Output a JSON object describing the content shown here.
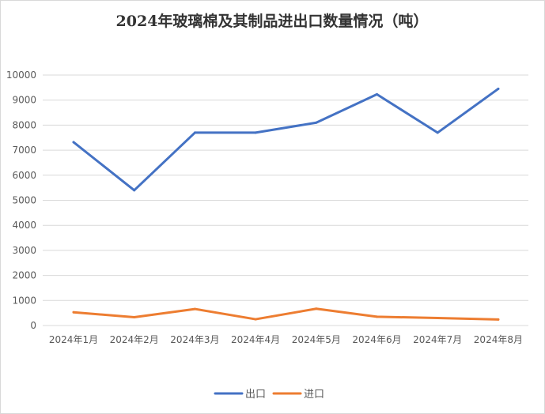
{
  "chart_data": {
    "type": "line",
    "title": "2024年玻璃棉及其制品进出口数量情况（吨）",
    "categories": [
      "2024年1月",
      "2024年2月",
      "2024年3月",
      "2024年4月",
      "2024年5月",
      "2024年6月",
      "2024年7月",
      "2024年8月"
    ],
    "y_ticks": [
      "0",
      "1000",
      "2000",
      "3000",
      "4000",
      "5000",
      "6000",
      "7000",
      "8000",
      "9000",
      "10000"
    ],
    "ylim": [
      0,
      10000
    ],
    "grid": true,
    "legend_position": "bottom",
    "series": [
      {
        "name": "出口",
        "color": "#4472c4",
        "values": [
          7320,
          5400,
          7700,
          7700,
          8100,
          9230,
          7700,
          9450
        ]
      },
      {
        "name": "进口",
        "color": "#ed7d31",
        "values": [
          530,
          330,
          660,
          250,
          670,
          350,
          300,
          240
        ]
      }
    ]
  }
}
